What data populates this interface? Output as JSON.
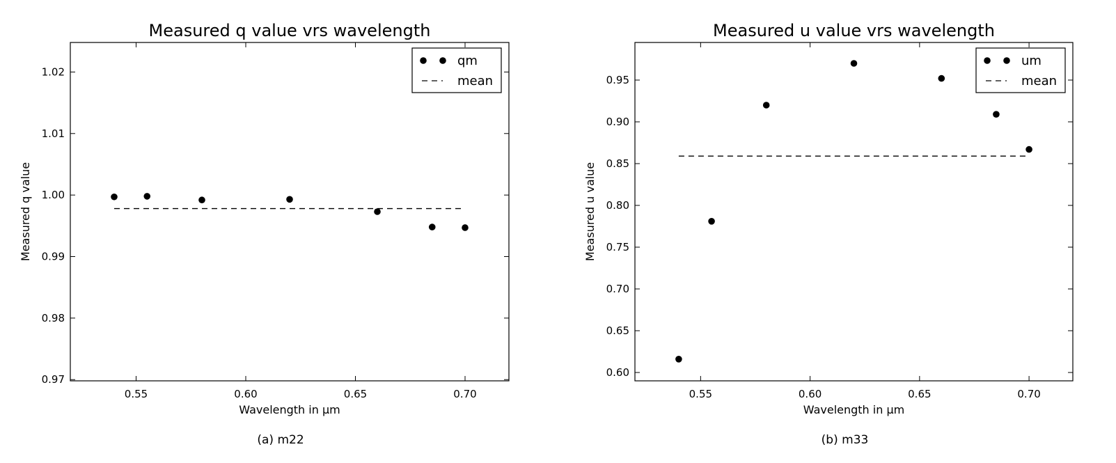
{
  "figure": {
    "captions": [
      "(a) m22",
      "(b) m33"
    ]
  },
  "chart_data": [
    {
      "type": "scatter",
      "title": "Measured q value vrs wavelength",
      "xlabel": "Wavelength in μm",
      "ylabel": "Measured q value",
      "xlim": [
        0.52,
        0.72
      ],
      "ylim": [
        0.9698,
        1.0248
      ],
      "xticks": [
        0.55,
        0.6,
        0.65,
        0.7
      ],
      "xtick_labels": [
        "0.55",
        "0.60",
        "0.65",
        "0.70"
      ],
      "yticks": [
        0.97,
        0.98,
        0.99,
        1.0,
        1.01,
        1.02
      ],
      "ytick_labels": [
        "0.97",
        "0.98",
        "0.99",
        "1.00",
        "1.01",
        "1.02"
      ],
      "grid": false,
      "legend_position": "top-right",
      "series": [
        {
          "name": "qm",
          "kind": "points",
          "x": [
            0.54,
            0.555,
            0.58,
            0.62,
            0.66,
            0.685,
            0.7
          ],
          "y": [
            0.9997,
            0.9998,
            0.9992,
            0.9993,
            0.9973,
            0.9948,
            0.9947
          ]
        },
        {
          "name": "mean",
          "kind": "dashed-line",
          "x": [
            0.54,
            0.7
          ],
          "y": [
            0.9978,
            0.9978
          ]
        }
      ]
    },
    {
      "type": "scatter",
      "title": "Measured u value vrs wavelength",
      "xlabel": "Wavelength in μm",
      "ylabel": "Measured u value",
      "xlim": [
        0.52,
        0.72
      ],
      "ylim": [
        0.59,
        0.995
      ],
      "xticks": [
        0.55,
        0.6,
        0.65,
        0.7
      ],
      "xtick_labels": [
        "0.55",
        "0.60",
        "0.65",
        "0.70"
      ],
      "yticks": [
        0.6,
        0.65,
        0.7,
        0.75,
        0.8,
        0.85,
        0.9,
        0.95
      ],
      "ytick_labels": [
        "0.60",
        "0.65",
        "0.70",
        "0.75",
        "0.80",
        "0.85",
        "0.90",
        "0.95"
      ],
      "grid": false,
      "legend_position": "top-right",
      "series": [
        {
          "name": "um",
          "kind": "points",
          "x": [
            0.54,
            0.555,
            0.58,
            0.62,
            0.66,
            0.685,
            0.7
          ],
          "y": [
            0.616,
            0.781,
            0.92,
            0.97,
            0.952,
            0.909,
            0.867
          ]
        },
        {
          "name": "mean",
          "kind": "dashed-line",
          "x": [
            0.54,
            0.7
          ],
          "y": [
            0.859,
            0.859
          ]
        }
      ]
    }
  ]
}
